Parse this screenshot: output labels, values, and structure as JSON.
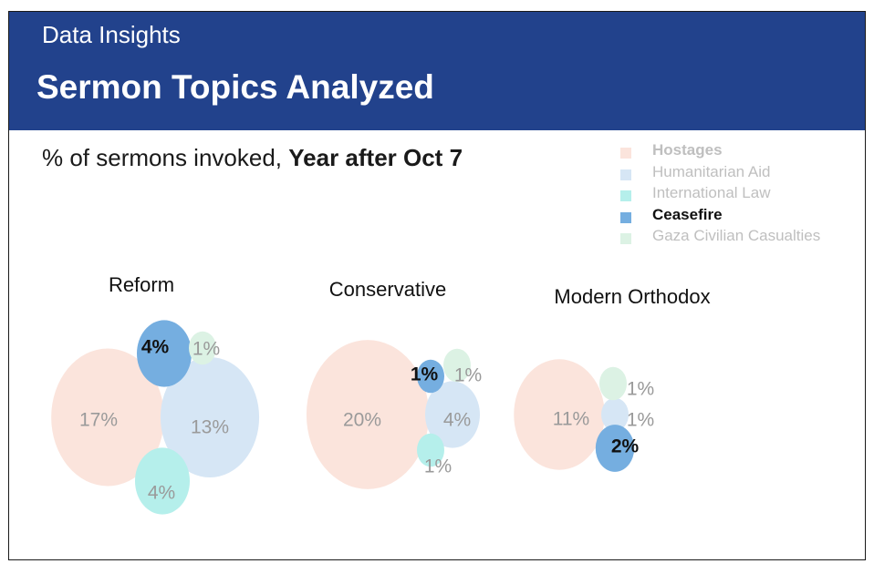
{
  "header": {
    "kicker": "Data Insights",
    "title": "Sermon Topics Analyzed"
  },
  "subtitle": {
    "prefix": "% of sermons invoked,",
    "emphasis": "Year after Oct 7"
  },
  "chart_data": {
    "type": "bubble",
    "unit": "%",
    "highlight": "Ceasefire",
    "legend_position": "top-right",
    "topics": [
      {
        "name": "Hostages",
        "color": "#fbe4dc"
      },
      {
        "name": "Humanitarian Aid",
        "color": "#d6e6f5"
      },
      {
        "name": "International Law",
        "color": "#b5efeb"
      },
      {
        "name": "Ceasefire",
        "color": "#75aee0"
      },
      {
        "name": "Gaza Civilian Casualties",
        "color": "#dcf2e4"
      }
    ],
    "groups": [
      {
        "name": "Reform",
        "values": [
          {
            "topic": "Hostages",
            "value": 17,
            "label": "17%"
          },
          {
            "topic": "Humanitarian Aid",
            "value": 13,
            "label": "13%"
          },
          {
            "topic": "International Law",
            "value": 4,
            "label": "4%"
          },
          {
            "topic": "Ceasefire",
            "value": 4,
            "label": "4%"
          },
          {
            "topic": "Gaza Civilian Casualties",
            "value": 1,
            "label": "1%"
          }
        ]
      },
      {
        "name": "Conservative",
        "values": [
          {
            "topic": "Hostages",
            "value": 20,
            "label": "20%"
          },
          {
            "topic": "Humanitarian Aid",
            "value": 4,
            "label": "4%"
          },
          {
            "topic": "International Law",
            "value": 1,
            "label": "1%"
          },
          {
            "topic": "Ceasefire",
            "value": 1,
            "label": "1%"
          },
          {
            "topic": "Gaza Civilian Casualties",
            "value": 1,
            "label": "1%"
          }
        ]
      },
      {
        "name": "Modern Orthodox",
        "values": [
          {
            "topic": "Hostages",
            "value": 11,
            "label": "11%"
          },
          {
            "topic": "Humanitarian Aid",
            "value": 1,
            "label": "1%"
          },
          {
            "topic": "Ceasefire",
            "value": 2,
            "label": "2%"
          },
          {
            "topic": "Gaza Civilian Casualties",
            "value": 1,
            "label": "1%"
          }
        ]
      }
    ]
  }
}
